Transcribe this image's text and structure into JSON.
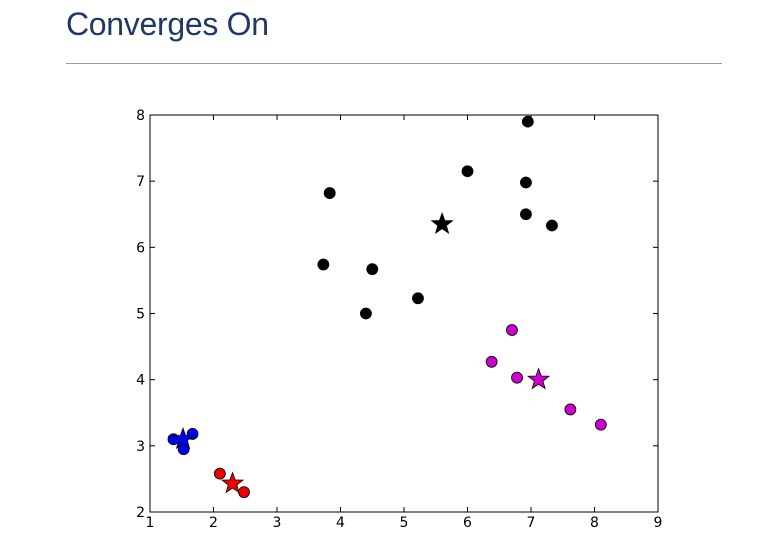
{
  "slide": {
    "title": "Converges On"
  },
  "chart_data": {
    "type": "scatter",
    "title": "",
    "xlabel": "",
    "ylabel": "",
    "xlim": [
      1,
      9
    ],
    "ylim": [
      2,
      8
    ],
    "xticks": [
      1,
      2,
      3,
      4,
      5,
      6,
      7,
      8,
      9
    ],
    "yticks": [
      2,
      3,
      4,
      5,
      6,
      7,
      8
    ],
    "grid": false,
    "legend": "none",
    "series": [
      {
        "color": "#000000",
        "marker": "circle",
        "points": [
          [
            6.95,
            7.9
          ],
          [
            6.0,
            7.15
          ],
          [
            6.92,
            6.98
          ],
          [
            3.83,
            6.82
          ],
          [
            6.92,
            6.5
          ],
          [
            7.33,
            6.33
          ],
          [
            3.73,
            5.74
          ],
          [
            4.5,
            5.67
          ],
          [
            5.22,
            5.23
          ],
          [
            4.4,
            5.0
          ]
        ]
      },
      {
        "color": "#cc00cc",
        "marker": "circle",
        "points": [
          [
            6.7,
            4.75
          ],
          [
            6.38,
            4.27
          ],
          [
            6.78,
            4.03
          ],
          [
            7.62,
            3.55
          ],
          [
            8.1,
            3.32
          ]
        ]
      },
      {
        "color": "#0000ee",
        "marker": "circle",
        "points": [
          [
            1.37,
            3.1
          ],
          [
            1.67,
            3.18
          ],
          [
            1.53,
            2.95
          ]
        ]
      },
      {
        "color": "#ee0000",
        "marker": "circle",
        "points": [
          [
            2.1,
            2.58
          ],
          [
            2.48,
            2.3
          ]
        ]
      }
    ],
    "centroids": [
      {
        "color": "#000000",
        "x": 5.6,
        "y": 6.35
      },
      {
        "color": "#cc00cc",
        "x": 7.12,
        "y": 4.0
      },
      {
        "color": "#0000ee",
        "x": 1.52,
        "y": 3.1
      },
      {
        "color": "#ee0000",
        "x": 2.3,
        "y": 2.43
      }
    ]
  }
}
